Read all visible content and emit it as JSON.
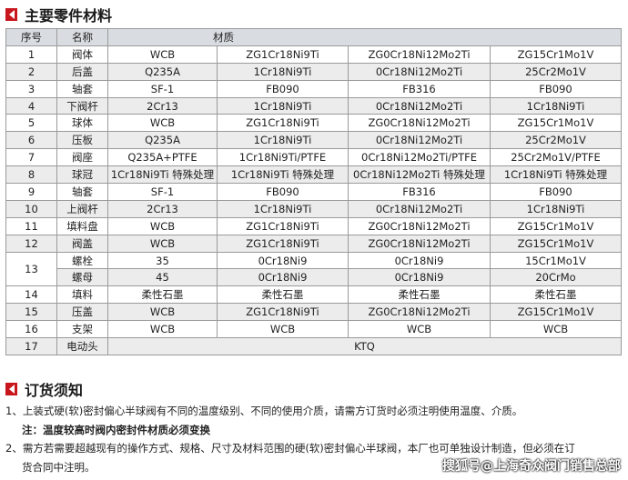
{
  "section1": {
    "title": "主要零件材料"
  },
  "table": {
    "headers": [
      "序号",
      "名称",
      "材质"
    ],
    "rows": [
      {
        "no": "1",
        "name": "阀体",
        "m": [
          "WCB",
          "ZG1Cr18Ni9Ti",
          "ZG0Cr18Ni12Mo2Ti",
          "ZG15Cr1Mo1V"
        ]
      },
      {
        "no": "2",
        "name": "后盖",
        "m": [
          "Q235A",
          "1Cr18Ni9Ti",
          "0Cr18Ni12Mo2Ti",
          "25Cr2Mo1V"
        ]
      },
      {
        "no": "3",
        "name": "轴套",
        "m": [
          "SF-1",
          "FB090",
          "FB316",
          "FB090"
        ]
      },
      {
        "no": "4",
        "name": "下阀杆",
        "m": [
          "2Cr13",
          "1Cr18Ni9Ti",
          "0Cr18Ni12Mo2Ti",
          "1Cr18Ni9Ti"
        ]
      },
      {
        "no": "5",
        "name": "球体",
        "m": [
          "WCB",
          "ZG1Cr18Ni9Ti",
          "ZG0Cr18Ni12Mo2Ti",
          "ZG15Cr1Mo1V"
        ]
      },
      {
        "no": "6",
        "name": "压板",
        "m": [
          "Q235A",
          "1Cr18Ni9Ti",
          "0Cr18Ni12Mo2Ti",
          "25Cr2Mo1V"
        ]
      },
      {
        "no": "7",
        "name": "阀座",
        "m": [
          "Q235A+PTFE",
          "1Cr18Ni9Ti/PTFE",
          "0Cr18Ni12Mo2Ti/PTFE",
          "25Cr2Mo1V/PTFE"
        ]
      },
      {
        "no": "8",
        "name": "球冠",
        "m": [
          "1Cr18Ni9Ti 特殊处理",
          "1Cr18Ni9Ti 特殊处理",
          "0Cr18Ni12Mo2Ti 特殊处理",
          "1Cr18Ni9Ti 特殊处理"
        ]
      },
      {
        "no": "9",
        "name": "轴套",
        "m": [
          "SF-1",
          "FB090",
          "FB316",
          "FB090"
        ]
      },
      {
        "no": "10",
        "name": "上阀杆",
        "m": [
          "2Cr13",
          "1Cr18Ni9Ti",
          "0Cr18Ni12Mo2Ti",
          "1Cr18Ni9Ti"
        ]
      },
      {
        "no": "11",
        "name": "填料盘",
        "m": [
          "WCB",
          "ZG1Cr18Ni9Ti",
          "ZG0Cr18Ni12Mo2Ti",
          "ZG15Cr1Mo1V"
        ]
      },
      {
        "no": "12",
        "name": "阀盖",
        "m": [
          "WCB",
          "ZG1Cr18Ni9Ti",
          "ZG0Cr18Ni12Mo2Ti",
          "ZG15Cr1Mo1V"
        ]
      },
      {
        "no": "13",
        "name": "螺栓",
        "m": [
          "35",
          "0Cr18Ni9",
          "0Cr18Ni9",
          "15Cr1Mo1V"
        ]
      },
      {
        "no": "",
        "name": "螺母",
        "m": [
          "45",
          "0Cr18Ni9",
          "0Cr18Ni9",
          "20CrMo"
        ]
      },
      {
        "no": "14",
        "name": "填料",
        "m": [
          "柔性石墨",
          "柔性石墨",
          "柔性石墨",
          "柔性石墨"
        ]
      },
      {
        "no": "15",
        "name": "压盖",
        "m": [
          "WCB",
          "ZG1Cr18Ni9Ti",
          "ZG0Cr18Ni12Mo2Ti",
          "ZG15Cr1Mo1V"
        ]
      },
      {
        "no": "16",
        "name": "支架",
        "m": [
          "WCB",
          "WCB",
          "WCB",
          "WCB"
        ]
      },
      {
        "no": "17",
        "name": "电动头",
        "m": [
          "KTQ"
        ]
      }
    ]
  },
  "section2": {
    "title": "订货须知"
  },
  "notes": {
    "n1": "1、上装式硬(软)密封偏心半球阀有不同的温度级别、不同的使用介质，请需方订货时必须注明使用温度、介质。",
    "n1_note": "注：温度较高时阀内密封件材质必须变换",
    "n2a": "2、需方若需要超越现有的操作方式、规格、尺寸及材料范围的硬(软)密封偏心半球阀，本厂也可单独设计制造，但必须在订",
    "n2b": "货合同中注明。"
  },
  "watermark": "搜狐号@上海奇众阀门销售总部",
  "colors": {
    "accent": "#c8161d",
    "header_bg": "#d9dde2",
    "stripe": "#ececec"
  }
}
